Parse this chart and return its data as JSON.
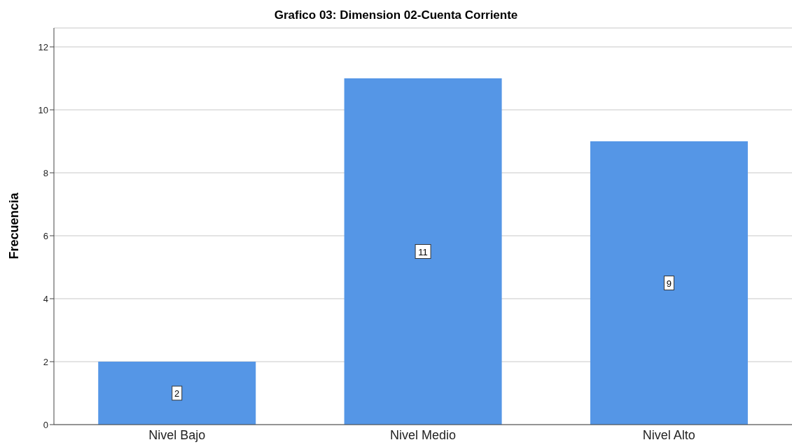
{
  "chart_data": {
    "type": "bar",
    "title": "Grafico 03: Dimension 02-Cuenta Corriente",
    "ylabel": "Frecuencia",
    "categories": [
      "Nivel Bajo",
      "Nivel Medio",
      "Nivel Alto"
    ],
    "values": [
      2,
      11,
      9
    ],
    "color": "#5596e6",
    "ylim": [
      0,
      12.6
    ],
    "yticks": [
      0,
      2,
      4,
      6,
      8,
      10,
      12
    ],
    "grid": "y",
    "data_labels": true
  }
}
